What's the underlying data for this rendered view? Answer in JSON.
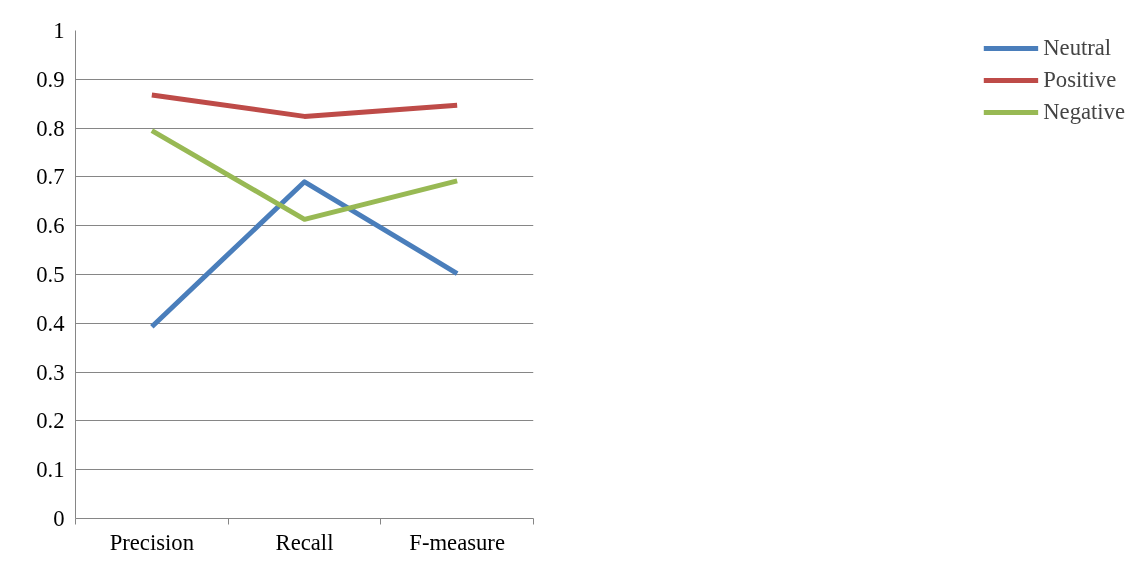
{
  "chart_data": {
    "type": "line",
    "categories": [
      "Precision",
      "Recall",
      "F-measure"
    ],
    "series": [
      {
        "name": "Neutral",
        "color": "#4a7ebb",
        "values": [
          0.393,
          0.69,
          0.502
        ]
      },
      {
        "name": "Positive",
        "color": "#be4b48",
        "values": [
          0.868,
          0.824,
          0.847
        ]
      },
      {
        "name": "Negative",
        "color": "#98b954",
        "values": [
          0.795,
          0.613,
          0.692
        ]
      }
    ],
    "ylim": [
      0,
      1
    ],
    "yticks": [
      0,
      0.1,
      0.2,
      0.3,
      0.4,
      0.5,
      0.6,
      0.7,
      0.8,
      0.9,
      1
    ],
    "grid": "y",
    "legend": "right",
    "marker": "none",
    "line_style": "solid"
  }
}
